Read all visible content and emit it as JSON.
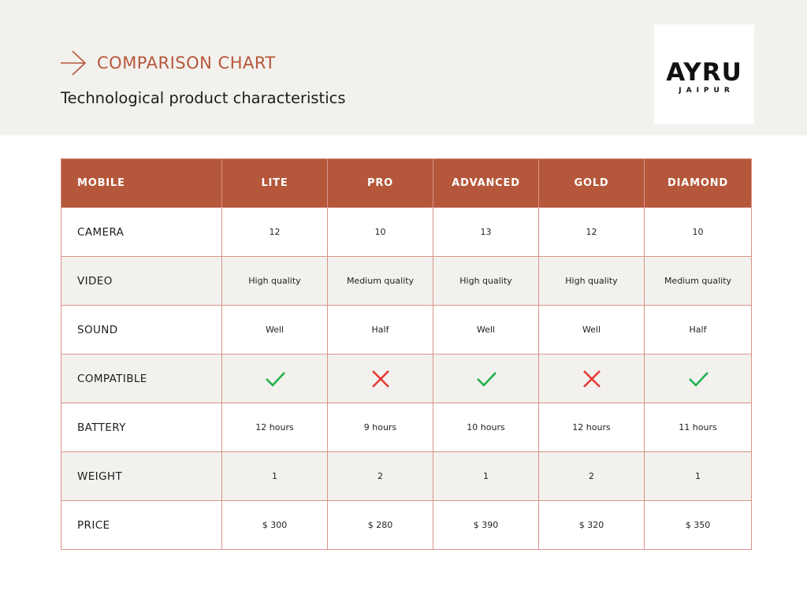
{
  "header": {
    "eyebrow": "COMPARISON CHART",
    "subtitle": "Technological product characteristics",
    "accent_color": "#b5573a",
    "background_color": "#f3f1ee",
    "arrow_icon": "arrow-right-icon"
  },
  "logo": {
    "main": "AYRU",
    "sub": "JAIPUR"
  },
  "table": {
    "columns": [
      "MOBILE",
      "LITE",
      "PRO",
      "ADVANCED",
      "GOLD",
      "DIAMOND"
    ],
    "rows": [
      {
        "label": "CAMERA",
        "cells": [
          "12",
          "10",
          "13",
          "12",
          "10"
        ]
      },
      {
        "label": "VIDEO",
        "cells": [
          "High quality",
          "Medium quality",
          "High quality",
          "High quality",
          "Medium quality"
        ]
      },
      {
        "label": "SOUND",
        "cells": [
          "Well",
          "Half",
          "Well",
          "Well",
          "Half"
        ]
      },
      {
        "label": "COMPATIBLE",
        "icons": [
          "check-icon",
          "cross-icon",
          "check-icon",
          "cross-icon",
          "check-icon"
        ]
      },
      {
        "label": "BATTERY",
        "cells": [
          "12 hours",
          "9 hours",
          "10 hours",
          "12 hours",
          "11 hours"
        ]
      },
      {
        "label": "WEIGHT",
        "cells": [
          "1",
          "2",
          "1",
          "2",
          "1"
        ]
      },
      {
        "label": "PRICE",
        "cells": [
          "$ 300",
          "$ 280",
          "$ 390",
          "$ 320",
          "$ 350"
        ]
      }
    ],
    "check_color": "#22b04b",
    "cross_color": "#e53935",
    "border_color": "#d9938a"
  }
}
